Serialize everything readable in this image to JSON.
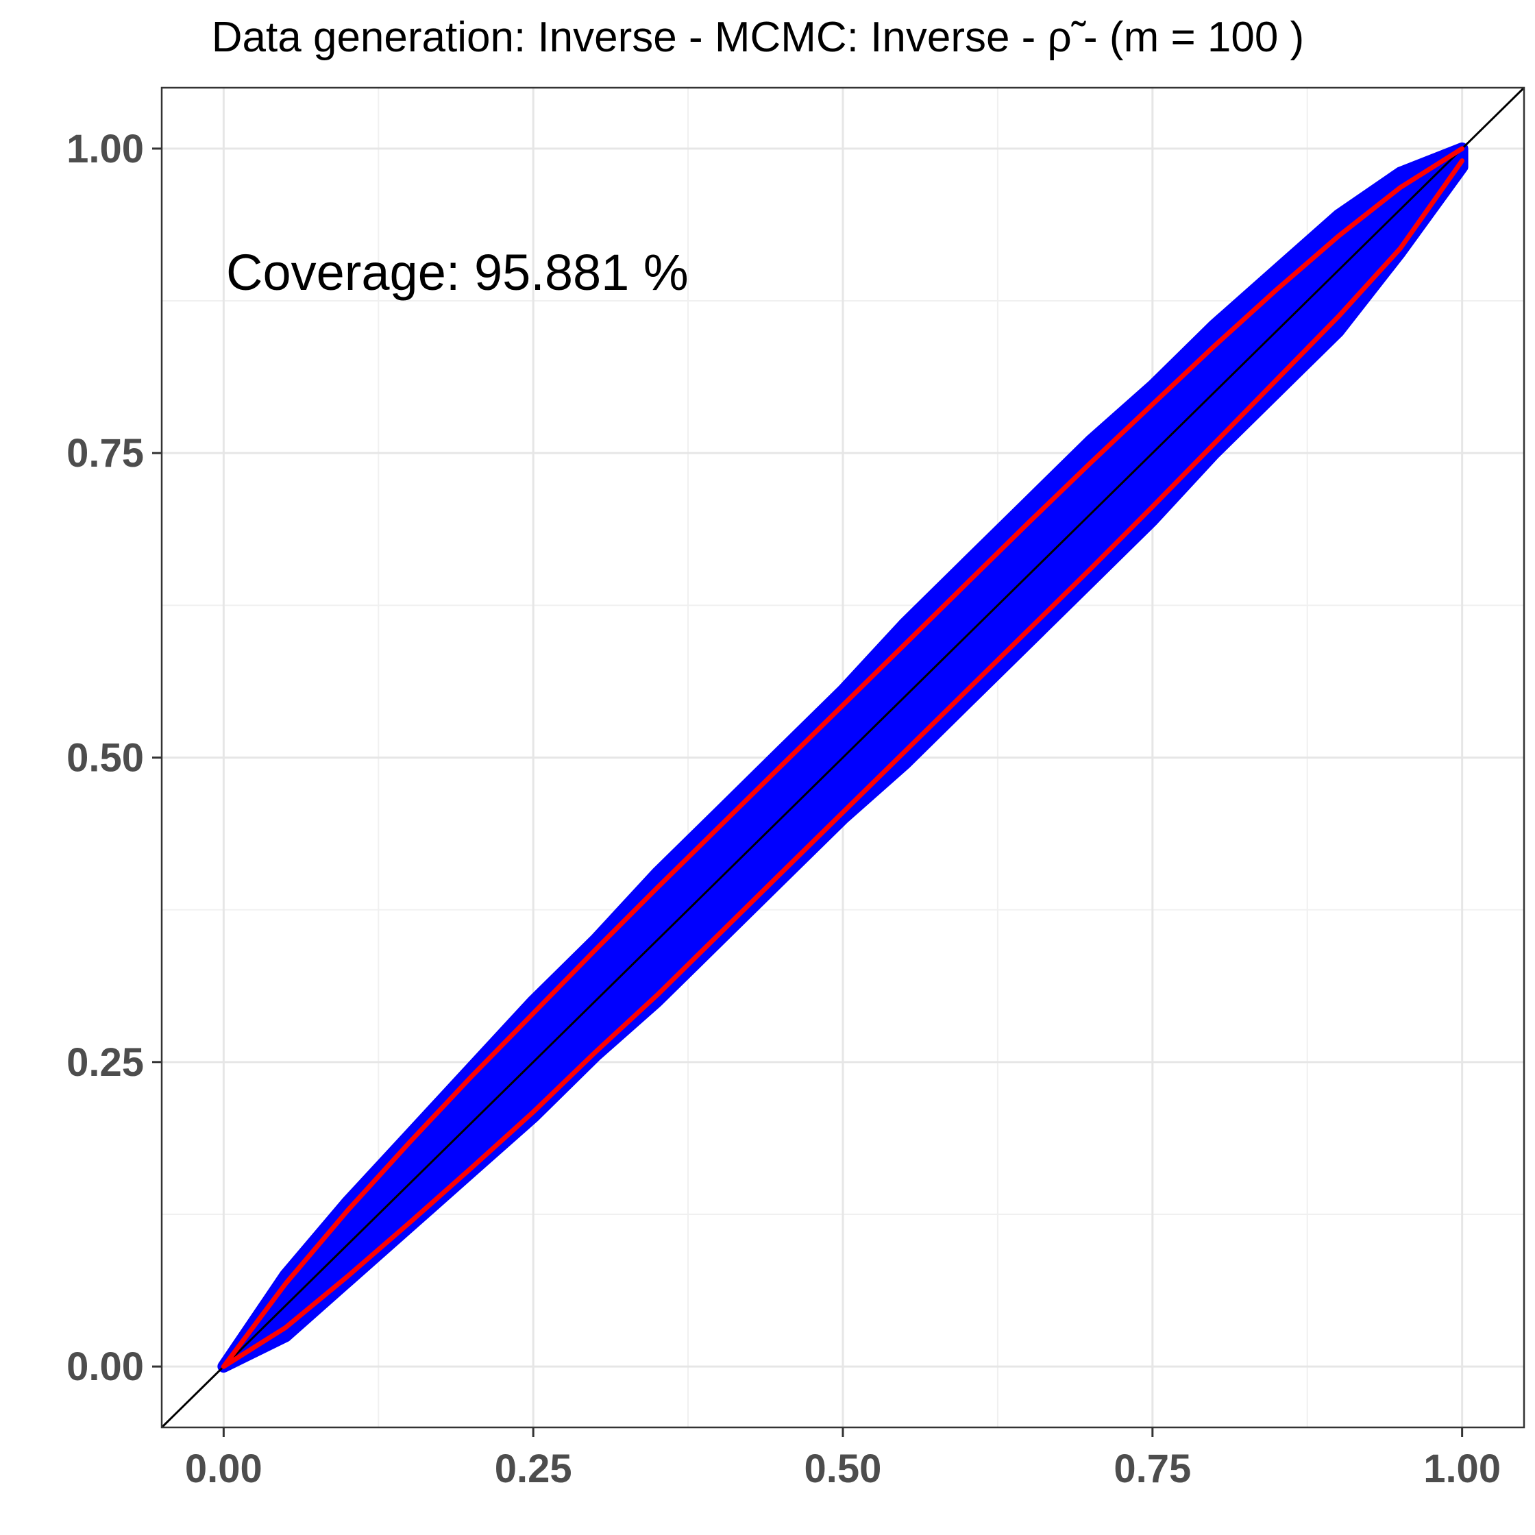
{
  "chart_data": {
    "type": "scatter",
    "title": "Data generation:  Inverse  -  MCMC:  Inverse  -  ρ̃  -   (m =  100 )",
    "xlabel": "",
    "ylabel": "",
    "xlim": [
      -0.05,
      1.05
    ],
    "ylim": [
      -0.05,
      1.05
    ],
    "x_ticks": [
      0.0,
      0.25,
      0.5,
      0.75,
      1.0
    ],
    "y_ticks": [
      0.0,
      0.25,
      0.5,
      0.75,
      1.0
    ],
    "x_tick_labels": [
      "0.00",
      "0.25",
      "0.50",
      "0.75",
      "1.00"
    ],
    "y_tick_labels": [
      "0.00",
      "0.25",
      "0.50",
      "0.75",
      "1.00"
    ],
    "grid": true,
    "annotation": "Coverage:  95.881 %",
    "reference_line": {
      "slope": 1,
      "intercept": 0,
      "color": "#000000"
    },
    "scatter_band": {
      "color": "#0000ff",
      "x": [
        0.0,
        0.05,
        0.1,
        0.15,
        0.2,
        0.25,
        0.3,
        0.35,
        0.4,
        0.45,
        0.5,
        0.55,
        0.6,
        0.65,
        0.7,
        0.75,
        0.8,
        0.85,
        0.9,
        0.95,
        1.0
      ],
      "upper": [
        0.0,
        0.075,
        0.135,
        0.19,
        0.245,
        0.3,
        0.35,
        0.405,
        0.455,
        0.505,
        0.555,
        0.61,
        0.66,
        0.71,
        0.76,
        0.805,
        0.855,
        0.9,
        0.945,
        0.98,
        1.0
      ],
      "lower": [
        0.0,
        0.025,
        0.07,
        0.115,
        0.16,
        0.205,
        0.255,
        0.3,
        0.35,
        0.4,
        0.45,
        0.495,
        0.545,
        0.595,
        0.645,
        0.695,
        0.75,
        0.8,
        0.85,
        0.915,
        0.985
      ]
    },
    "series": [
      {
        "color": "#ff0000",
        "x": [
          0.0,
          0.05,
          0.1,
          0.15,
          0.2,
          0.25,
          0.3,
          0.35,
          0.4,
          0.45,
          0.5,
          0.55,
          0.6,
          0.65,
          0.7,
          0.75,
          0.8,
          0.85,
          0.9,
          0.95,
          1.0
        ],
        "y": [
          0.0,
          0.068,
          0.128,
          0.184,
          0.238,
          0.29,
          0.342,
          0.393,
          0.443,
          0.493,
          0.543,
          0.593,
          0.643,
          0.693,
          0.742,
          0.79,
          0.838,
          0.884,
          0.928,
          0.968,
          1.0
        ]
      },
      {
        "color": "#ff0000",
        "x": [
          0.0,
          0.05,
          0.1,
          0.15,
          0.2,
          0.25,
          0.3,
          0.35,
          0.4,
          0.45,
          0.5,
          0.55,
          0.6,
          0.65,
          0.7,
          0.75,
          0.8,
          0.85,
          0.9,
          0.95,
          1.0
        ],
        "y": [
          0.0,
          0.032,
          0.074,
          0.118,
          0.163,
          0.209,
          0.258,
          0.305,
          0.355,
          0.405,
          0.455,
          0.505,
          0.555,
          0.605,
          0.655,
          0.706,
          0.758,
          0.81,
          0.862,
          0.918,
          0.99
        ]
      }
    ]
  }
}
